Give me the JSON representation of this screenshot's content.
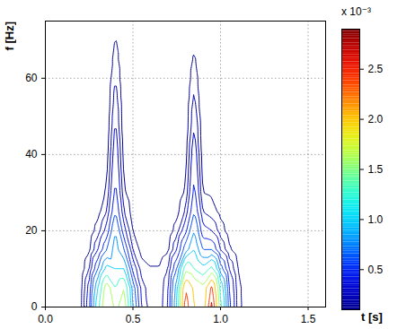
{
  "chart_data": {
    "type": "contour",
    "x_label": "t [s]",
    "y_label": "f [Hz]",
    "t": [
      0,
      0.05,
      0.1,
      0.15,
      0.2,
      0.25,
      0.3,
      0.35,
      0.4,
      0.45,
      0.5,
      0.55,
      0.6,
      0.65,
      0.7,
      0.75,
      0.8,
      0.85,
      0.9,
      0.95,
      1.0,
      1.05,
      1.1,
      1.15,
      1.2,
      1.25,
      1.3,
      1.35,
      1.4,
      1.45,
      1.5,
      1.55,
      1.6
    ],
    "f": [
      0,
      5,
      10,
      15,
      20,
      25,
      30,
      35,
      40,
      45,
      50,
      55,
      60,
      65,
      70,
      75
    ],
    "values": [
      [
        0,
        0,
        0,
        0,
        0,
        0,
        0,
        0,
        0,
        0,
        0,
        0,
        0,
        0,
        0,
        0
      ],
      [
        0,
        0,
        0,
        0,
        0,
        0,
        0,
        0,
        0,
        0,
        0,
        0,
        0,
        0,
        0,
        0
      ],
      [
        0,
        0,
        0,
        0,
        0,
        0,
        0,
        0,
        0,
        0,
        0,
        0,
        0,
        0,
        0,
        0
      ],
      [
        0,
        0,
        0,
        0,
        0,
        0,
        0,
        0,
        0,
        0,
        0,
        0,
        0,
        0,
        0,
        0
      ],
      [
        0.06,
        0.05,
        0.02,
        0,
        0,
        0,
        0,
        0,
        0,
        0,
        0,
        0,
        0,
        0,
        0,
        0
      ],
      [
        0.4,
        0.35,
        0.2,
        0.08,
        0.03,
        0,
        0,
        0,
        0,
        0,
        0,
        0,
        0,
        0,
        0,
        0
      ],
      [
        1.2,
        1.0,
        0.6,
        0.3,
        0.15,
        0.06,
        0.03,
        0.01,
        0,
        0,
        0,
        0,
        0,
        0,
        0,
        0
      ],
      [
        2.0,
        1.8,
        1.1,
        0.6,
        0.35,
        0.2,
        0.12,
        0.08,
        0.05,
        0.03,
        0.02,
        0.01,
        0,
        0,
        0,
        0
      ],
      [
        1.5,
        1.3,
        1.0,
        0.9,
        0.8,
        0.6,
        0.5,
        0.45,
        0.4,
        0.35,
        0.3,
        0.25,
        0.2,
        0.15,
        0.11,
        0.02
      ],
      [
        1.8,
        1.6,
        1.0,
        0.6,
        0.35,
        0.2,
        0.12,
        0.08,
        0.05,
        0.03,
        0.02,
        0.01,
        0,
        0,
        0,
        0
      ],
      [
        0.8,
        0.7,
        0.4,
        0.2,
        0.1,
        0.05,
        0.02,
        0,
        0,
        0,
        0,
        0,
        0,
        0,
        0,
        0
      ],
      [
        0.3,
        0.25,
        0.15,
        0.06,
        0.02,
        0,
        0,
        0,
        0,
        0,
        0,
        0,
        0,
        0,
        0,
        0
      ],
      [
        0.15,
        0.14,
        0.11,
        0.04,
        0,
        0,
        0,
        0,
        0,
        0,
        0,
        0,
        0,
        0,
        0,
        0
      ],
      [
        0.14,
        0.13,
        0.11,
        0.04,
        0,
        0,
        0,
        0,
        0,
        0,
        0,
        0,
        0,
        0,
        0,
        0
      ],
      [
        0.3,
        0.28,
        0.2,
        0.08,
        0.03,
        0,
        0,
        0,
        0,
        0,
        0,
        0,
        0,
        0,
        0,
        0
      ],
      [
        1.0,
        0.9,
        0.6,
        0.3,
        0.15,
        0.06,
        0.02,
        0,
        0,
        0,
        0,
        0,
        0,
        0,
        0,
        0
      ],
      [
        2.6,
        2.4,
        1.5,
        0.7,
        0.4,
        0.22,
        0.12,
        0.08,
        0.05,
        0.03,
        0.02,
        0.01,
        0,
        0,
        0,
        0
      ],
      [
        2.0,
        1.9,
        1.3,
        1.0,
        0.8,
        0.6,
        0.5,
        0.45,
        0.4,
        0.33,
        0.28,
        0.22,
        0.17,
        0.12,
        0.05,
        0
      ],
      [
        1.8,
        1.7,
        1.1,
        0.6,
        0.35,
        0.2,
        0.1,
        0.06,
        0.04,
        0.02,
        0.01,
        0,
        0,
        0,
        0,
        0
      ],
      [
        2.8,
        2.5,
        1.4,
        0.6,
        0.3,
        0.15,
        0.08,
        0.04,
        0.02,
        0,
        0,
        0,
        0,
        0,
        0,
        0
      ],
      [
        1.4,
        1.2,
        0.7,
        0.3,
        0.15,
        0.07,
        0.03,
        0.01,
        0,
        0,
        0,
        0,
        0,
        0,
        0,
        0
      ],
      [
        0.5,
        0.45,
        0.3,
        0.12,
        0.05,
        0.02,
        0,
        0,
        0,
        0,
        0,
        0,
        0,
        0,
        0,
        0
      ],
      [
        0.15,
        0.14,
        0.1,
        0.04,
        0.01,
        0,
        0,
        0,
        0,
        0,
        0,
        0,
        0,
        0,
        0,
        0
      ],
      [
        0.03,
        0.03,
        0.02,
        0,
        0,
        0,
        0,
        0,
        0,
        0,
        0,
        0,
        0,
        0,
        0,
        0
      ],
      [
        0,
        0,
        0,
        0,
        0,
        0,
        0,
        0,
        0,
        0,
        0,
        0,
        0,
        0,
        0,
        0
      ],
      [
        0,
        0,
        0,
        0,
        0,
        0,
        0,
        0,
        0,
        0,
        0,
        0,
        0,
        0,
        0,
        0
      ],
      [
        0,
        0,
        0,
        0,
        0,
        0,
        0,
        0,
        0,
        0,
        0,
        0,
        0,
        0,
        0,
        0
      ],
      [
        0,
        0,
        0,
        0,
        0,
        0,
        0,
        0,
        0,
        0,
        0,
        0,
        0,
        0,
        0,
        0
      ],
      [
        0,
        0,
        0,
        0,
        0,
        0,
        0,
        0,
        0,
        0,
        0,
        0,
        0,
        0,
        0,
        0
      ],
      [
        0,
        0,
        0,
        0,
        0,
        0,
        0,
        0,
        0,
        0,
        0,
        0,
        0,
        0,
        0,
        0
      ],
      [
        0,
        0,
        0,
        0,
        0,
        0,
        0,
        0,
        0,
        0,
        0,
        0,
        0,
        0,
        0,
        0
      ],
      [
        0,
        0,
        0,
        0,
        0,
        0,
        0,
        0,
        0,
        0,
        0,
        0,
        0,
        0,
        0,
        0
      ],
      [
        0,
        0,
        0,
        0,
        0,
        0,
        0,
        0,
        0,
        0,
        0,
        0,
        0,
        0,
        0,
        0
      ]
    ],
    "levels": [
      0.1,
      0.2,
      0.3,
      0.45,
      0.6,
      0.8,
      1.0,
      1.3,
      1.6,
      2.0,
      2.4,
      2.7
    ],
    "xlim": [
      0,
      1.6
    ],
    "xticks": [
      0,
      0.5,
      1,
      1.5
    ],
    "ylim": [
      0,
      75
    ],
    "yticks": [
      0,
      20,
      40,
      60
    ],
    "grid": true,
    "colorbar": {
      "label": "x 10⁻³",
      "range": [
        0.1,
        2.9
      ],
      "ticks": [
        0.5,
        1,
        1.5,
        2,
        2.5
      ]
    }
  }
}
